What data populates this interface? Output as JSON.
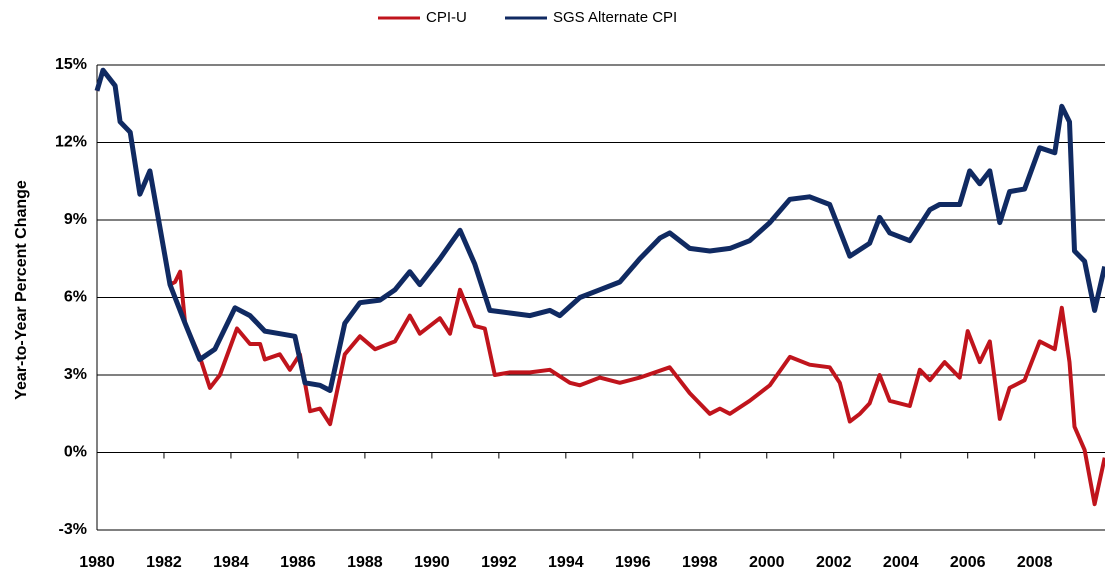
{
  "chart_data": {
    "type": "line",
    "y_label": "Year-to-Year Percent Change",
    "xlim": [
      1980,
      2010.1
    ],
    "xticks": [
      1980,
      1982,
      1984,
      1986,
      1988,
      1990,
      1992,
      1994,
      1996,
      1998,
      2000,
      2002,
      2004,
      2006,
      2008
    ],
    "ylim": [
      -3,
      15
    ],
    "yticks": [
      {
        "value": -3,
        "label": "-3%"
      },
      {
        "value": 0,
        "label": "0%"
      },
      {
        "value": 3,
        "label": "3%"
      },
      {
        "value": 6,
        "label": "6%"
      },
      {
        "value": 9,
        "label": "9%"
      },
      {
        "value": 12,
        "label": "12%"
      },
      {
        "value": 15,
        "label": "15%"
      }
    ],
    "grid": true,
    "legend": "top",
    "series": [
      {
        "name": "CPI-U",
        "color": "#c0141c",
        "x": [
          1980,
          1980.18,
          1980.54,
          1980.69,
          1980.99,
          1981.28,
          1981.58,
          1981.88,
          1982.18,
          1982.33,
          1982.48,
          1982.63,
          1983.07,
          1983.37,
          1983.67,
          1984.18,
          1984.57,
          1984.87,
          1985.01,
          1985.46,
          1985.76,
          1986.06,
          1986.36,
          1986.66,
          1986.96,
          1987.4,
          1987.85,
          1988.3,
          1988.9,
          1989.34,
          1989.64,
          1990.24,
          1990.54,
          1990.84,
          1991.28,
          1991.58,
          1991.88,
          1992.33,
          1992.93,
          1993.52,
          1994.12,
          1994.42,
          1995.01,
          1995.61,
          1996.21,
          1997.1,
          1997.7,
          1998.3,
          1998.6,
          1998.9,
          1999.49,
          2000.09,
          2000.69,
          2001.28,
          2001.88,
          2002.18,
          2002.48,
          2002.78,
          2003.07,
          2003.37,
          2003.67,
          2004.27,
          2004.57,
          2004.87,
          2005.31,
          2005.76,
          2006.0,
          2006.36,
          2006.66,
          2006.96,
          2007.25,
          2007.7,
          2008.15,
          2008.6,
          2008.81,
          2009.04,
          2009.19,
          2009.49,
          2009.79,
          2010.09
        ],
        "values": [
          14.0,
          14.8,
          14.2,
          12.8,
          12.4,
          10.0,
          10.9,
          8.7,
          6.5,
          6.6,
          7.0,
          5.0,
          3.7,
          2.5,
          3.0,
          4.8,
          4.2,
          4.2,
          3.6,
          3.8,
          3.2,
          3.8,
          1.6,
          1.7,
          1.1,
          3.8,
          4.5,
          4.0,
          4.3,
          5.3,
          4.6,
          5.2,
          4.6,
          6.3,
          4.9,
          4.8,
          3.0,
          3.1,
          3.1,
          3.2,
          2.7,
          2.6,
          2.9,
          2.7,
          2.9,
          3.3,
          2.3,
          1.5,
          1.7,
          1.5,
          2.0,
          2.6,
          3.7,
          3.4,
          3.3,
          2.7,
          1.2,
          1.5,
          1.9,
          3.0,
          2.0,
          1.8,
          3.2,
          2.8,
          3.5,
          2.9,
          4.7,
          3.5,
          4.3,
          1.3,
          2.5,
          2.8,
          4.3,
          4.0,
          5.6,
          3.5,
          1.0,
          0.1,
          -2.0,
          -0.2
        ]
      },
      {
        "name": "SGS Alternate CPI",
        "color": "#102a62",
        "x": [
          1980,
          1980.18,
          1980.54,
          1980.69,
          1980.99,
          1981.28,
          1981.58,
          1981.88,
          1982.18,
          1982.63,
          1983.07,
          1983.52,
          1984.12,
          1984.57,
          1985.01,
          1985.46,
          1985.91,
          1986.21,
          1986.66,
          1986.96,
          1987.4,
          1987.85,
          1988.45,
          1988.9,
          1989.34,
          1989.64,
          1990.24,
          1990.84,
          1991.28,
          1991.73,
          1992.33,
          1992.93,
          1993.52,
          1993.82,
          1994.42,
          1995.01,
          1995.61,
          1996.21,
          1996.81,
          1997.1,
          1997.7,
          1998.3,
          1998.9,
          1999.49,
          2000.09,
          2000.69,
          2001.28,
          2001.88,
          2002.48,
          2003.07,
          2003.37,
          2003.67,
          2004.27,
          2004.87,
          2005.16,
          2005.76,
          2006.06,
          2006.36,
          2006.66,
          2006.96,
          2007.25,
          2007.7,
          2008.15,
          2008.6,
          2008.81,
          2009.04,
          2009.19,
          2009.49,
          2009.79,
          2010.09
        ],
        "values": [
          14.0,
          14.8,
          14.2,
          12.8,
          12.4,
          10.0,
          10.9,
          8.7,
          6.5,
          5.0,
          3.6,
          4.0,
          5.6,
          5.3,
          4.7,
          4.6,
          4.5,
          2.7,
          2.6,
          2.4,
          5.0,
          5.8,
          5.9,
          6.3,
          7.0,
          6.5,
          7.5,
          8.6,
          7.3,
          5.5,
          5.4,
          5.3,
          5.5,
          5.3,
          6.0,
          6.3,
          6.6,
          7.5,
          8.3,
          8.5,
          7.9,
          7.8,
          7.9,
          8.2,
          8.9,
          9.8,
          9.9,
          9.6,
          7.6,
          8.1,
          9.1,
          8.5,
          8.2,
          9.4,
          9.6,
          9.6,
          10.9,
          10.4,
          10.9,
          8.9,
          10.1,
          10.2,
          11.8,
          11.6,
          13.4,
          12.8,
          7.8,
          7.4,
          5.5,
          7.2
        ]
      }
    ]
  }
}
